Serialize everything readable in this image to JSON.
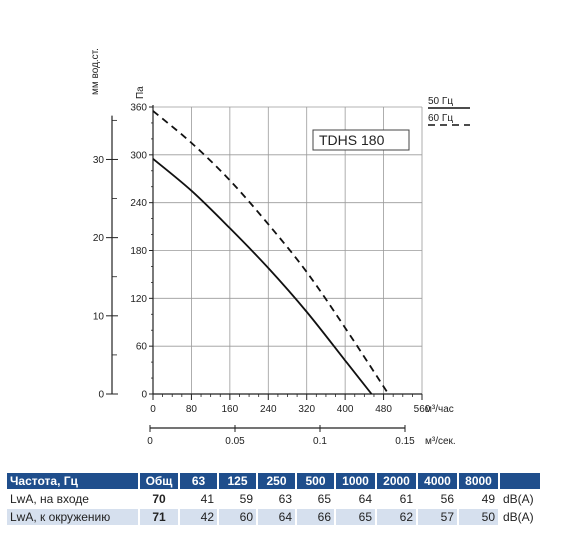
{
  "chart_data": {
    "type": "line",
    "model_label": "TDHS 180",
    "left_axis_label": "мм вод.ст.",
    "y_axis_label": "Па",
    "x_axis_label": "м³/час",
    "x2_axis_label": "м³/сек.",
    "xlim": [
      0,
      560
    ],
    "ylim": [
      0,
      360
    ],
    "x_ticks": [
      0,
      80,
      160,
      240,
      320,
      400,
      480,
      560
    ],
    "y_ticks": [
      0,
      60,
      120,
      180,
      240,
      300,
      360
    ],
    "mm_ticks": [
      0,
      10,
      20,
      30
    ],
    "x2_ticks": [
      "0",
      "0.05",
      "0.1",
      "0.15"
    ],
    "x2_tick_values": [
      0,
      0.05,
      0.1,
      0.15
    ],
    "series": [
      {
        "name": "50 Гц",
        "style": "solid",
        "x": [
          0,
          80,
          160,
          240,
          320,
          400,
          455
        ],
        "y": [
          295,
          255,
          208,
          158,
          103,
          42,
          0
        ]
      },
      {
        "name": "60 Гц",
        "style": "dashed",
        "x": [
          0,
          80,
          160,
          240,
          320,
          400,
          490
        ],
        "y": [
          355,
          315,
          268,
          213,
          153,
          83,
          0
        ]
      }
    ]
  },
  "table": {
    "header": [
      "Частота, Гц",
      "Общ",
      "63",
      "125",
      "250",
      "500",
      "1000",
      "2000",
      "4000",
      "8000",
      ""
    ],
    "rows": [
      {
        "label": "LwA, на входе",
        "total": "70",
        "values": [
          "41",
          "59",
          "63",
          "65",
          "64",
          "61",
          "56",
          "49"
        ],
        "unit": "dB(A)"
      },
      {
        "label": "LwA, к окружению",
        "total": "71",
        "values": [
          "42",
          "60",
          "64",
          "66",
          "65",
          "62",
          "57",
          "50"
        ],
        "unit": "dB(A)"
      }
    ]
  },
  "colors": {
    "header_bg": "#1f4e8c",
    "alt_row_bg": "#d6e0ee",
    "grid": "#9a9a9a"
  }
}
